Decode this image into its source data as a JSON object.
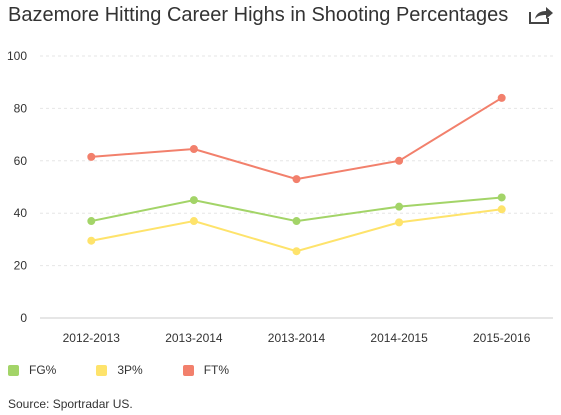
{
  "header": {
    "title": "Bazemore Hitting Career Highs in Shooting Percentages",
    "share_icon": "share-arrow-icon"
  },
  "footer": {
    "source": "Source: Sportradar US."
  },
  "chart_data": {
    "type": "line",
    "title": "Bazemore Hitting Career Highs in Shooting Percentages",
    "categories": [
      "2012-2013",
      "2013-2014",
      "2013-2014",
      "2014-2015",
      "2015-2016"
    ],
    "ylim": [
      0,
      100
    ],
    "yticks": [
      0,
      20,
      40,
      60,
      80,
      100
    ],
    "grid": true,
    "legend_position": "bottom-left",
    "series": [
      {
        "name": "FG%",
        "color": "#a3d468",
        "values": [
          37,
          45,
          37,
          42.5,
          46
        ]
      },
      {
        "name": "3P%",
        "color": "#fee36b",
        "values": [
          29.5,
          37,
          25.5,
          36.5,
          41.5
        ]
      },
      {
        "name": "FT%",
        "color": "#f2806c",
        "values": [
          61.5,
          64.5,
          53,
          60,
          84
        ]
      }
    ]
  }
}
